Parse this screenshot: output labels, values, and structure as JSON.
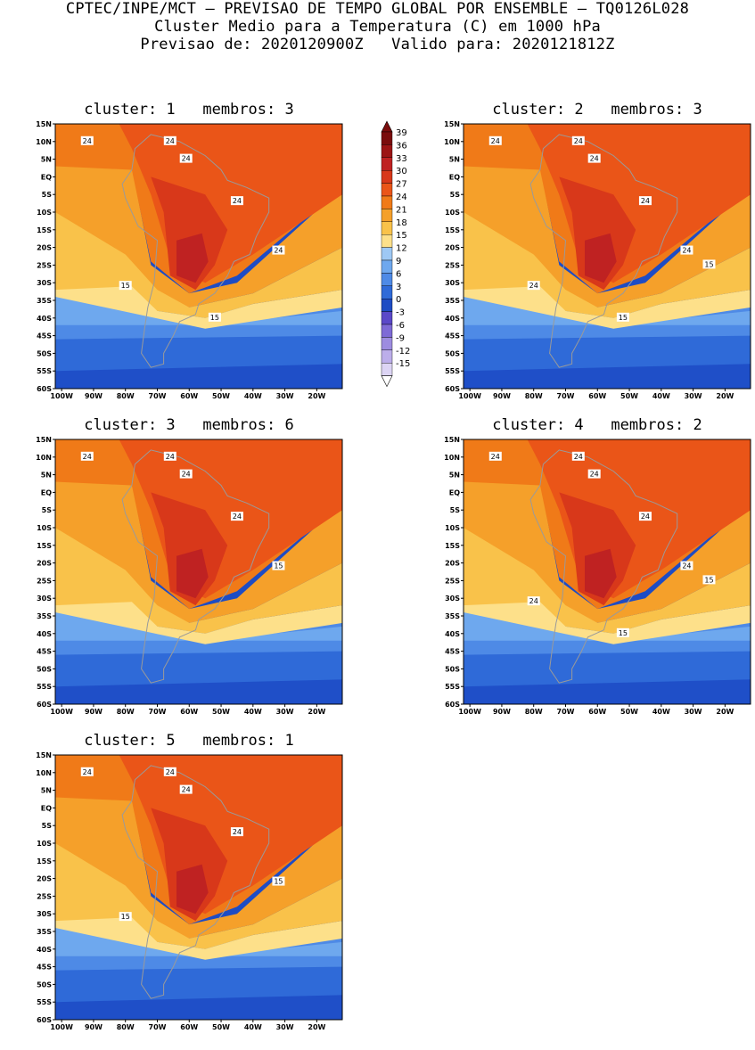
{
  "header": {
    "line1": "CPTEC/INPE/MCT – PREVISAO DE TEMPO GLOBAL POR ENSEMBLE – TQ0126L028",
    "line2": "Cluster Medio para a Temperatura (C) em 1000 hPa",
    "line3": "Previsao de: 2020120900Z   Valido para: 2020121812Z"
  },
  "axes": {
    "lat_labels": [
      "15N",
      "10N",
      "5N",
      "EQ",
      "5S",
      "10S",
      "15S",
      "20S",
      "25S",
      "30S",
      "35S",
      "40S",
      "45S",
      "50S",
      "55S",
      "60S"
    ],
    "lon_labels": [
      "100W",
      "90W",
      "80W",
      "70W",
      "60W",
      "50W",
      "40W",
      "30W",
      "20W"
    ]
  },
  "colorbar": {
    "labels": [
      "39",
      "36",
      "33",
      "30",
      "27",
      "24",
      "21",
      "18",
      "15",
      "12",
      "9",
      "6",
      "3",
      "0",
      "-3",
      "-6",
      "-9",
      "-12",
      "-15"
    ],
    "colors": [
      "#7a0d0d",
      "#9c1515",
      "#bf2222",
      "#d8381a",
      "#ea5518",
      "#f07a18",
      "#f5a02a",
      "#f9c24a",
      "#fde08a",
      "#9ec8f4",
      "#6ea8ee",
      "#4e8ae6",
      "#2f6ad8",
      "#1e4cc4",
      "#5b48c8",
      "#7e6ad6",
      "#9d8ce0",
      "#bcaeea",
      "#dcd4f4"
    ]
  },
  "panels": [
    {
      "title": "cluster: 1   membros: 3",
      "labels": [
        "24",
        "24",
        "24",
        "24",
        "24",
        "15",
        "15"
      ]
    },
    {
      "title": "cluster: 2   membros: 3",
      "labels": [
        "24",
        "24",
        "24",
        "24",
        "24",
        "24",
        "15",
        "15"
      ]
    },
    {
      "title": "cluster: 3   membros: 6",
      "labels": [
        "24",
        "24",
        "24",
        "24",
        "15"
      ]
    },
    {
      "title": "cluster: 4   membros: 2",
      "labels": [
        "24",
        "24",
        "24",
        "24",
        "24",
        "24",
        "15",
        "15"
      ]
    },
    {
      "title": "cluster: 5   membros: 1",
      "labels": [
        "24",
        "24",
        "24",
        "24",
        "15",
        "15"
      ]
    }
  ]
}
